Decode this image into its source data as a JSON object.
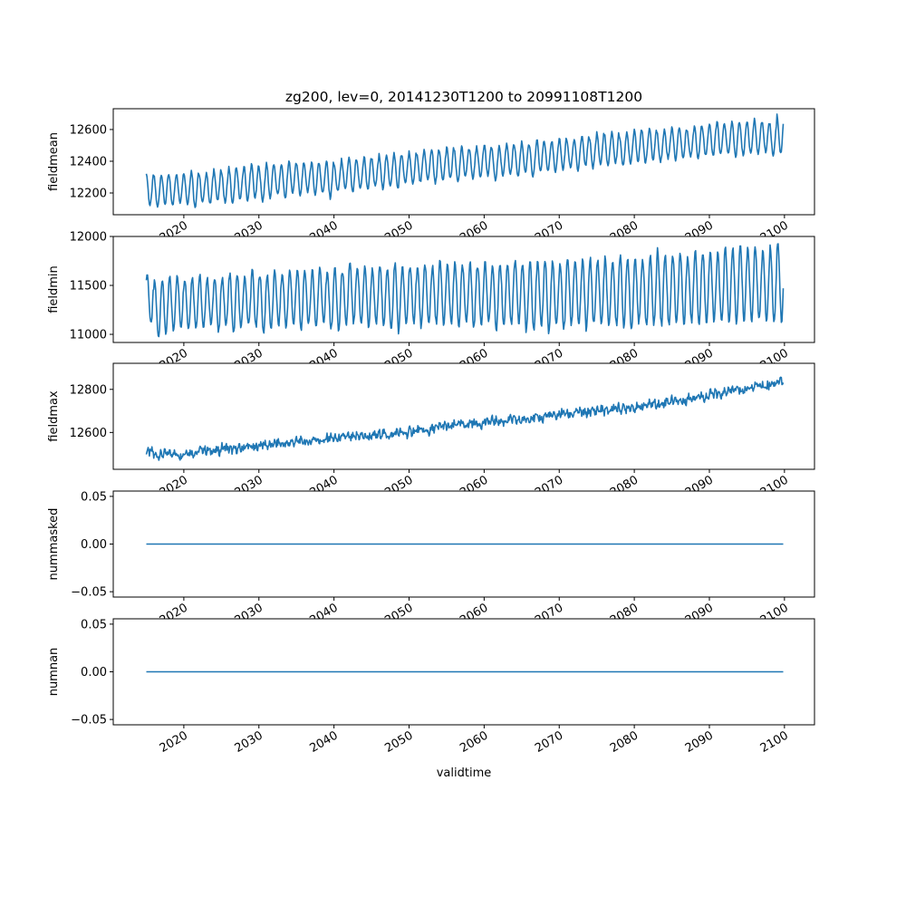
{
  "figure": {
    "title": "zg200, lev=0, 20141230T1200 to 20991108T1200",
    "xlabel": "validtime",
    "line_color": "#1f77b4"
  },
  "chart_data": [
    {
      "type": "line",
      "ylabel": "fieldmean",
      "xlim": [
        2010.6,
        2104.0
      ],
      "ylim": [
        12063,
        12731
      ],
      "xticks": [
        2020,
        2030,
        2040,
        2050,
        2060,
        2070,
        2080,
        2090,
        2100
      ],
      "yticks": [
        12200,
        12400,
        12600
      ],
      "ytick_labels": [
        "12200",
        "12400",
        "12600"
      ],
      "series": {
        "name": "fieldmean",
        "resolution": "monthly, shown as annual seasonal envelope",
        "start_year": 2015,
        "end_year": 2099,
        "end_month": 11,
        "seasonal_peak_phase": 0.0,
        "annual_max": [
          12320,
          12310,
          12320,
          12310,
          12320,
          12330,
          12340,
          12320,
          12330,
          12350,
          12340,
          12360,
          12350,
          12370,
          12380,
          12360,
          12390,
          12370,
          12380,
          12400,
          12390,
          12380,
          12400,
          12390,
          12400,
          12380,
          12410,
          12420,
          12400,
          12430,
          12420,
          12440,
          12430,
          12450,
          12440,
          12460,
          12450,
          12470,
          12480,
          12460,
          12490,
          12470,
          12490,
          12480,
          12490,
          12510,
          12480,
          12500,
          12510,
          12500,
          12520,
          12500,
          12540,
          12520,
          12530,
          12550,
          12530,
          12540,
          12560,
          12550,
          12580,
          12570,
          12590,
          12560,
          12580,
          12600,
          12590,
          12610,
          12580,
          12600,
          12620,
          12610,
          12600,
          12630,
          12620,
          12640,
          12650,
          12630,
          12650,
          12640,
          12650,
          12660,
          12650,
          12640,
          12690
        ],
        "annual_min": [
          12120,
          12110,
          12130,
          12120,
          12140,
          12130,
          12110,
          12140,
          12130,
          12150,
          12140,
          12130,
          12160,
          12150,
          12170,
          12150,
          12170,
          12190,
          12170,
          12200,
          12180,
          12210,
          12190,
          12200,
          12170,
          12210,
          12220,
          12200,
          12230,
          12220,
          12240,
          12230,
          12250,
          12230,
          12260,
          12250,
          12270,
          12280,
          12260,
          12280,
          12290,
          12270,
          12300,
          12290,
          12300,
          12310,
          12280,
          12310,
          12320,
          12300,
          12330,
          12310,
          12330,
          12340,
          12330,
          12350,
          12360,
          12340,
          12370,
          12360,
          12380,
          12370,
          12390,
          12380,
          12390,
          12400,
          12390,
          12410,
          12400,
          12420,
          12410,
          12420,
          12430,
          12420,
          12440,
          12430,
          12440,
          12450,
          12430,
          12440,
          12450,
          12440,
          12460,
          12440,
          12450
        ]
      }
    },
    {
      "type": "line",
      "ylabel": "fieldmin",
      "xlim": [
        2010.6,
        2104.0
      ],
      "ylim": [
        10917,
        12000
      ],
      "xticks": [
        2020,
        2030,
        2040,
        2050,
        2060,
        2070,
        2080,
        2090,
        2100
      ],
      "yticks": [
        11000,
        11500,
        12000
      ],
      "ytick_labels": [
        "11000",
        "11500",
        "12000"
      ],
      "series": {
        "name": "fieldmin",
        "resolution": "monthly, shown as annual seasonal envelope",
        "start_year": 2015,
        "end_year": 2099,
        "end_month": 11,
        "seasonal_peak_phase": 0.12,
        "annual_max": [
          11620,
          11540,
          11560,
          11580,
          11590,
          11570,
          11580,
          11600,
          11570,
          11590,
          11580,
          11620,
          11600,
          11580,
          11650,
          11620,
          11600,
          11640,
          11610,
          11650,
          11670,
          11640,
          11660,
          11700,
          11620,
          11680,
          11650,
          11720,
          11660,
          11690,
          11670,
          11700,
          11650,
          11730,
          11680,
          11700,
          11680,
          11720,
          11690,
          11740,
          11700,
          11720,
          11690,
          11730,
          11710,
          11740,
          11700,
          11730,
          11720,
          11750,
          11720,
          11750,
          11730,
          11770,
          11740,
          11720,
          11780,
          11760,
          11750,
          11770,
          11760,
          11780,
          11750,
          11800,
          11770,
          11780,
          11760,
          11790,
          11860,
          11820,
          11810,
          11840,
          11800,
          11870,
          11830,
          11850,
          11820,
          11880,
          11860,
          11900,
          11870,
          11900,
          11850,
          11890,
          11960
        ],
        "annual_min": [
          11100,
          10970,
          11010,
          11040,
          11080,
          11060,
          11080,
          11050,
          11100,
          11020,
          11090,
          11000,
          11060,
          11100,
          11070,
          11020,
          11060,
          11090,
          11080,
          11100,
          11040,
          11100,
          11080,
          11120,
          11060,
          11030,
          11090,
          11110,
          11120,
          11080,
          11100,
          11110,
          11070,
          11030,
          11100,
          11120,
          11080,
          11110,
          11120,
          11100,
          11110,
          11080,
          11120,
          11070,
          11110,
          11120,
          11050,
          11090,
          11100,
          11110,
          11030,
          11060,
          11090,
          11010,
          11080,
          11060,
          11100,
          11080,
          11050,
          11100,
          11110,
          11070,
          11100,
          11090,
          11050,
          11120,
          11080,
          11110,
          11100,
          11090,
          11120,
          11100,
          11130,
          11110,
          11140,
          11130,
          11120,
          11140,
          11120,
          11150,
          11140,
          11130,
          11150,
          11140,
          11130
        ]
      }
    },
    {
      "type": "line",
      "ylabel": "fieldmax",
      "xlim": [
        2010.6,
        2104.0
      ],
      "ylim": [
        12429,
        12921
      ],
      "xticks": [
        2020,
        2030,
        2040,
        2050,
        2060,
        2070,
        2080,
        2090,
        2100
      ],
      "yticks": [
        12600,
        12800
      ],
      "ytick_labels": [
        "12600",
        "12800"
      ],
      "series": {
        "name": "fieldmax",
        "resolution": "monthly, shown as annual means with ~±20 monthly noise",
        "start_year": 2015,
        "end_year": 2099,
        "end_month": 11,
        "monthly_noise": 20,
        "annual_mean": [
          12510,
          12495,
          12500,
          12505,
          12495,
          12510,
          12505,
          12520,
          12515,
          12515,
          12530,
          12520,
          12525,
          12535,
          12530,
          12545,
          12540,
          12550,
          12545,
          12555,
          12560,
          12555,
          12570,
          12560,
          12575,
          12570,
          12580,
          12575,
          12585,
          12580,
          12585,
          12595,
          12585,
          12600,
          12595,
          12605,
          12610,
          12605,
          12620,
          12630,
          12625,
          12640,
          12635,
          12645,
          12640,
          12650,
          12655,
          12650,
          12660,
          12655,
          12660,
          12670,
          12665,
          12680,
          12675,
          12690,
          12685,
          12695,
          12690,
          12700,
          12705,
          12700,
          12715,
          12710,
          12720,
          12715,
          12725,
          12735,
          12730,
          12745,
          12750,
          12745,
          12760,
          12770,
          12765,
          12780,
          12775,
          12790,
          12800,
          12795,
          12810,
          12820,
          12815,
          12830,
          12840
        ]
      }
    },
    {
      "type": "line",
      "ylabel": "nummasked",
      "xlim": [
        2010.6,
        2104.0
      ],
      "ylim": [
        -0.0556,
        0.0556
      ],
      "xticks": [
        2020,
        2030,
        2040,
        2050,
        2060,
        2070,
        2080,
        2090,
        2100
      ],
      "yticks": [
        -0.05,
        0.0,
        0.05
      ],
      "ytick_labels": [
        "−0.05",
        "0.00",
        "0.05"
      ],
      "series": {
        "name": "nummasked",
        "start_year": 2015,
        "end_year": 2099,
        "end_month": 11,
        "constant": 0
      }
    },
    {
      "type": "line",
      "ylabel": "numnan",
      "xlabel": "validtime",
      "xlim": [
        2010.6,
        2104.0
      ],
      "ylim": [
        -0.0556,
        0.0556
      ],
      "xticks": [
        2020,
        2030,
        2040,
        2050,
        2060,
        2070,
        2080,
        2090,
        2100
      ],
      "yticks": [
        -0.05,
        0.0,
        0.05
      ],
      "ytick_labels": [
        "−0.05",
        "0.00",
        "0.05"
      ],
      "series": {
        "name": "numnan",
        "start_year": 2015,
        "end_year": 2099,
        "end_month": 11,
        "constant": 0
      }
    }
  ]
}
